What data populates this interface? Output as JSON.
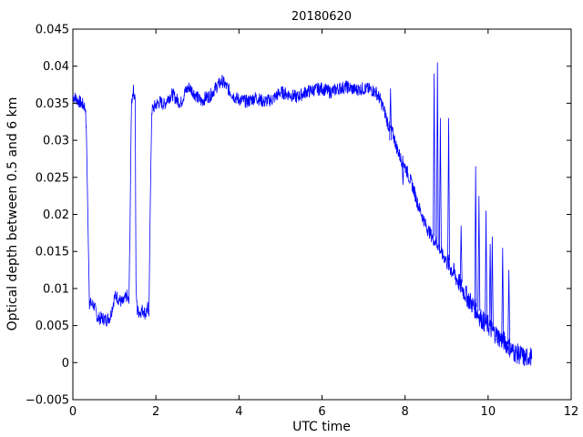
{
  "chart_data": {
    "type": "line",
    "title": "20180620",
    "xlabel": "UTC time",
    "ylabel": "Optical depth between 0.5 and 6 km",
    "xlim": [
      0,
      12
    ],
    "ylim": [
      -0.005,
      0.045
    ],
    "xticks": [
      0,
      2,
      4,
      6,
      8,
      10,
      12
    ],
    "xtick_labels": [
      "0",
      "2",
      "4",
      "6",
      "8",
      "10",
      "12"
    ],
    "yticks": [
      -0.005,
      0,
      0.005,
      0.01,
      0.015,
      0.02,
      0.025,
      0.03,
      0.035,
      0.04,
      0.045
    ],
    "ytick_labels": [
      "−0.005",
      "0",
      "0.005",
      "0.01",
      "0.015",
      "0.02",
      "0.025",
      "0.03",
      "0.035",
      "0.04",
      "0.045"
    ],
    "grid": false,
    "legend": "none",
    "series": [
      {
        "color": "#0000ff",
        "x": [
          0.0,
          0.1,
          0.2,
          0.3,
          0.33,
          0.36,
          0.4,
          0.5,
          0.6,
          0.7,
          0.8,
          0.9,
          1.0,
          1.05,
          1.1,
          1.2,
          1.3,
          1.35,
          1.38,
          1.41,
          1.45,
          1.5,
          1.52,
          1.55,
          1.6,
          1.7,
          1.75,
          1.8,
          1.83,
          1.86,
          1.9,
          2.0,
          2.1,
          2.2,
          2.3,
          2.4,
          2.5,
          2.6,
          2.7,
          2.8,
          2.9,
          3.0,
          3.1,
          3.2,
          3.3,
          3.4,
          3.5,
          3.6,
          3.7,
          3.8,
          3.9,
          4.0,
          4.2,
          4.4,
          4.6,
          4.8,
          5.0,
          5.2,
          5.4,
          5.6,
          5.8,
          6.0,
          6.2,
          6.4,
          6.6,
          6.8,
          7.0,
          7.2,
          7.3,
          7.4,
          7.5,
          7.6,
          7.7,
          7.8,
          7.9,
          8.0,
          8.1,
          8.2,
          8.3,
          8.4,
          8.5,
          8.6,
          8.7,
          8.8,
          8.9,
          9.0,
          9.1,
          9.2,
          9.3,
          9.4,
          9.5,
          9.6,
          9.7,
          9.8,
          9.9,
          10.0,
          10.1,
          10.2,
          10.3,
          10.4,
          10.5,
          10.6,
          10.7,
          10.8,
          10.9,
          11.0,
          11.05
        ],
        "y": [
          0.036,
          0.0355,
          0.035,
          0.0345,
          0.03,
          0.02,
          0.008,
          0.0078,
          0.006,
          0.006,
          0.0058,
          0.0062,
          0.0088,
          0.009,
          0.0086,
          0.008,
          0.009,
          0.008,
          0.02,
          0.035,
          0.0368,
          0.0358,
          0.01,
          0.007,
          0.0068,
          0.0072,
          0.0065,
          0.0075,
          0.006,
          0.02,
          0.034,
          0.0348,
          0.0352,
          0.0348,
          0.0358,
          0.0362,
          0.0355,
          0.035,
          0.0365,
          0.0372,
          0.0365,
          0.0358,
          0.0352,
          0.0358,
          0.036,
          0.0368,
          0.0375,
          0.038,
          0.0372,
          0.0365,
          0.0358,
          0.0355,
          0.0352,
          0.0358,
          0.0352,
          0.0355,
          0.0365,
          0.0362,
          0.0358,
          0.0365,
          0.0368,
          0.037,
          0.0365,
          0.037,
          0.0372,
          0.0368,
          0.037,
          0.0368,
          0.0365,
          0.0355,
          0.034,
          0.032,
          0.031,
          0.029,
          0.0275,
          0.0265,
          0.025,
          0.0235,
          0.0215,
          0.02,
          0.0185,
          0.0175,
          0.0165,
          0.0158,
          0.0145,
          0.0138,
          0.0128,
          0.0118,
          0.0108,
          0.0098,
          0.0088,
          0.008,
          0.0072,
          0.0062,
          0.0055,
          0.005,
          0.0043,
          0.0038,
          0.0032,
          0.0028,
          0.0022,
          0.0015,
          0.0012,
          0.001,
          0.0005,
          0.001,
          0.0005
        ]
      }
    ],
    "spikes": [
      {
        "x": 7.65,
        "peak": 0.037,
        "base": 0.03
      },
      {
        "x": 7.95,
        "peak": 0.024,
        "base": 0.027
      },
      {
        "x": 8.7,
        "peak": 0.039,
        "base": 0.017
      },
      {
        "x": 8.78,
        "peak": 0.0405,
        "base": 0.016
      },
      {
        "x": 8.85,
        "peak": 0.033,
        "base": 0.0155
      },
      {
        "x": 9.05,
        "peak": 0.033,
        "base": 0.0138
      },
      {
        "x": 9.35,
        "peak": 0.0185,
        "base": 0.0108
      },
      {
        "x": 9.7,
        "peak": 0.0265,
        "base": 0.0075
      },
      {
        "x": 9.78,
        "peak": 0.0225,
        "base": 0.007
      },
      {
        "x": 9.95,
        "peak": 0.0205,
        "base": 0.0055
      },
      {
        "x": 10.05,
        "peak": 0.016,
        "base": 0.005
      },
      {
        "x": 10.1,
        "peak": 0.017,
        "base": 0.0045
      },
      {
        "x": 10.35,
        "peak": 0.0155,
        "base": 0.0032
      },
      {
        "x": 10.5,
        "peak": 0.0125,
        "base": 0.0025
      }
    ]
  }
}
